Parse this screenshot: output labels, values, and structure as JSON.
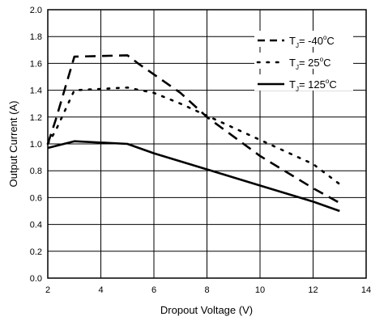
{
  "chart_data": {
    "type": "line",
    "title": "",
    "xlabel": "Dropout Voltage (V)",
    "ylabel": "Output Current (A)",
    "xlim": [
      2,
      14
    ],
    "ylim": [
      0,
      2.0
    ],
    "x_ticks": [
      "2",
      "4",
      "6",
      "8",
      "10",
      "12",
      "14"
    ],
    "y_ticks": [
      "0.0",
      "0.2",
      "0.4",
      "0.6",
      "0.8",
      "1.0",
      "1.2",
      "1.4",
      "1.6",
      "1.8",
      "2.0"
    ],
    "grid": true,
    "legend_position": "top-right",
    "series": [
      {
        "name": "TJ= -40°C",
        "legend": {
          "main": "T",
          "sub": "J",
          "pre": "= -40",
          "sup": "o",
          "post": "C"
        },
        "style": "dashed",
        "points": [
          [
            2,
            1.0
          ],
          [
            2.3,
            1.18
          ],
          [
            3,
            1.65
          ],
          [
            5,
            1.66
          ],
          [
            5.4,
            1.6
          ],
          [
            7,
            1.38
          ],
          [
            8,
            1.2
          ],
          [
            10,
            0.91
          ],
          [
            12,
            0.67
          ],
          [
            13,
            0.56
          ]
        ]
      },
      {
        "name": "TJ= 25°C",
        "legend": {
          "main": "T",
          "sub": "J",
          "pre": "= 25",
          "sup": "o",
          "post": "C"
        },
        "style": "dotted",
        "points": [
          [
            2,
            1.0
          ],
          [
            2.3,
            1.1
          ],
          [
            3,
            1.4
          ],
          [
            5,
            1.42
          ],
          [
            6,
            1.38
          ],
          [
            7,
            1.3
          ],
          [
            8,
            1.21
          ],
          [
            10,
            1.03
          ],
          [
            12,
            0.85
          ],
          [
            13,
            0.7
          ]
        ]
      },
      {
        "name": "TJ= 125°C",
        "legend": {
          "main": "T",
          "sub": "J",
          "pre": "= 125",
          "sup": "o",
          "post": "C"
        },
        "style": "solid",
        "points": [
          [
            2,
            0.97
          ],
          [
            3,
            1.02
          ],
          [
            5,
            1.0
          ],
          [
            6,
            0.93
          ],
          [
            8,
            0.81
          ],
          [
            10,
            0.69
          ],
          [
            12,
            0.57
          ],
          [
            13,
            0.5
          ]
        ]
      }
    ]
  }
}
